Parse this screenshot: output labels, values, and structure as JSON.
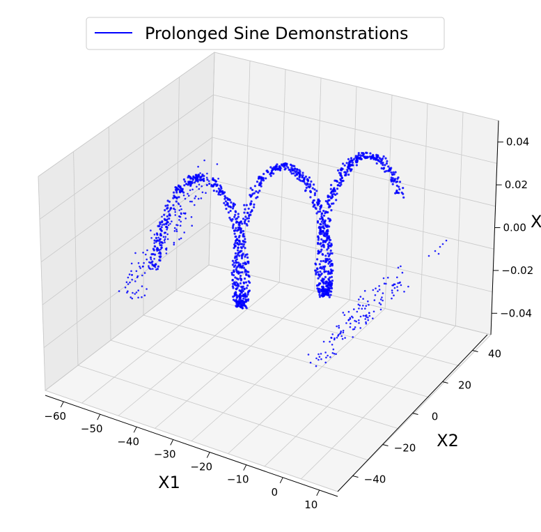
{
  "chart_data": {
    "type": "scatter",
    "projection": "3d",
    "legend": {
      "placement": "top-center",
      "entries": [
        {
          "label": "Prolonged Sine Demonstrations",
          "color": "#0000ff",
          "marker": "line"
        }
      ]
    },
    "axes": {
      "x": {
        "label": "X1",
        "ticks": [
          "−60",
          "−50",
          "−40",
          "−30",
          "−20",
          "−10",
          "0",
          "10"
        ],
        "range": [
          -65,
          15
        ]
      },
      "y": {
        "label": "X2",
        "ticks": [
          "−40",
          "−20",
          "0",
          "20",
          "40"
        ],
        "range": [
          -45,
          45
        ]
      },
      "z": {
        "label": "X",
        "ticks": [
          "0.04",
          "0.02",
          "0.00",
          "−0.02",
          "−0.04"
        ],
        "range": [
          -0.05,
          0.05
        ]
      }
    },
    "grid": true,
    "series": [
      {
        "name": "Prolonged Sine Demonstrations",
        "color": "#0000ff",
        "shape": "prolonged sine wave, about two and a half periods, with scattered points near both ends",
        "x_extent": [
          -48,
          8
        ],
        "y_amplitude": 20,
        "z_value": 0.0
      }
    ]
  }
}
